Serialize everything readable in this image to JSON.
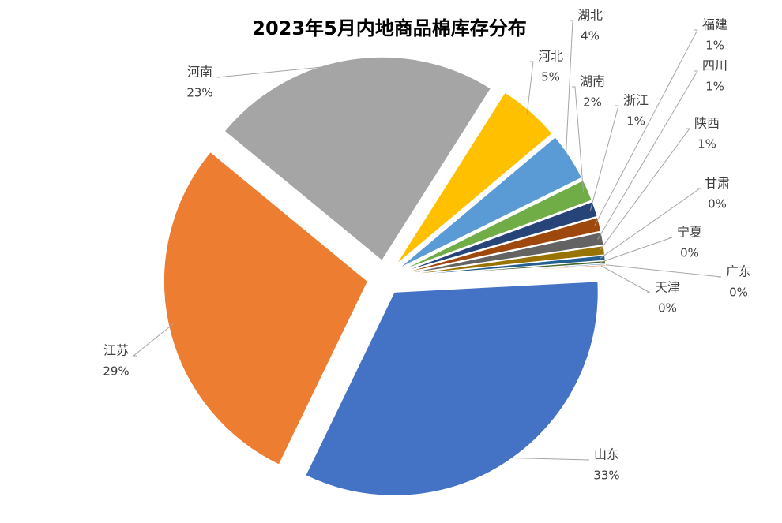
{
  "chart_data": {
    "type": "pie",
    "title": "2023年5月内地商品棉库存分布",
    "categories": [
      "山东",
      "江苏",
      "河南",
      "河北",
      "湖北",
      "湖南",
      "浙江",
      "福建",
      "四川",
      "陕西",
      "甘肃",
      "宁夏",
      "广东",
      "天津"
    ],
    "values": [
      33.0,
      28.8,
      23.0,
      4.9,
      3.8,
      1.7,
      1.2,
      1.1,
      1.0,
      0.7,
      0.4,
      0.2,
      0.1,
      0.1
    ],
    "value_labels": [
      "33%",
      "29%",
      "23%",
      "5%",
      "4%",
      "2%",
      "1%",
      "1%",
      "1%",
      "1%",
      "0%",
      "0%",
      "0%",
      "0%"
    ],
    "colors": [
      "#4472c4",
      "#ed7d31",
      "#a5a5a5",
      "#ffc000",
      "#5b9bd5",
      "#70ad47",
      "#264478",
      "#9e480e",
      "#636363",
      "#997300",
      "#255e91",
      "#43682b",
      "#698ed0",
      "#f1975a"
    ]
  }
}
